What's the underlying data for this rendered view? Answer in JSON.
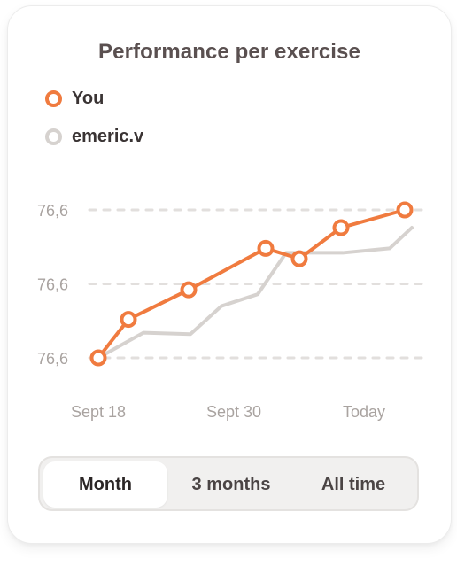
{
  "card": {
    "title": "Performance per exercise"
  },
  "legend": [
    {
      "label": "You",
      "color": "#f07b3f"
    },
    {
      "label": "emeric.v",
      "color": "#d6d2cf"
    }
  ],
  "chart_data": {
    "type": "line",
    "title": "Performance per exercise",
    "xlabel": "",
    "ylabel": "",
    "x_tick_labels": [
      "Sept 18",
      "Sept 30",
      "Today"
    ],
    "y_tick_labels": [
      "76,6",
      "76,6",
      "76,6"
    ],
    "grid": "horizontal-dashed",
    "legend_position": "top-left",
    "series": [
      {
        "name": "You",
        "color": "#f07b3f",
        "markers": true,
        "values": [
          0.0,
          0.26,
          0.46,
          0.74,
          0.67,
          0.88,
          1.0
        ]
      },
      {
        "name": "emeric.v",
        "color": "#d6d2cf",
        "markers": false,
        "values": [
          0.0,
          0.17,
          0.16,
          0.35,
          0.43,
          0.71,
          0.71,
          0.74,
          0.88
        ]
      }
    ]
  },
  "period_selector": {
    "options": [
      "Month",
      "3 months",
      "All time"
    ],
    "selected": "Month"
  }
}
